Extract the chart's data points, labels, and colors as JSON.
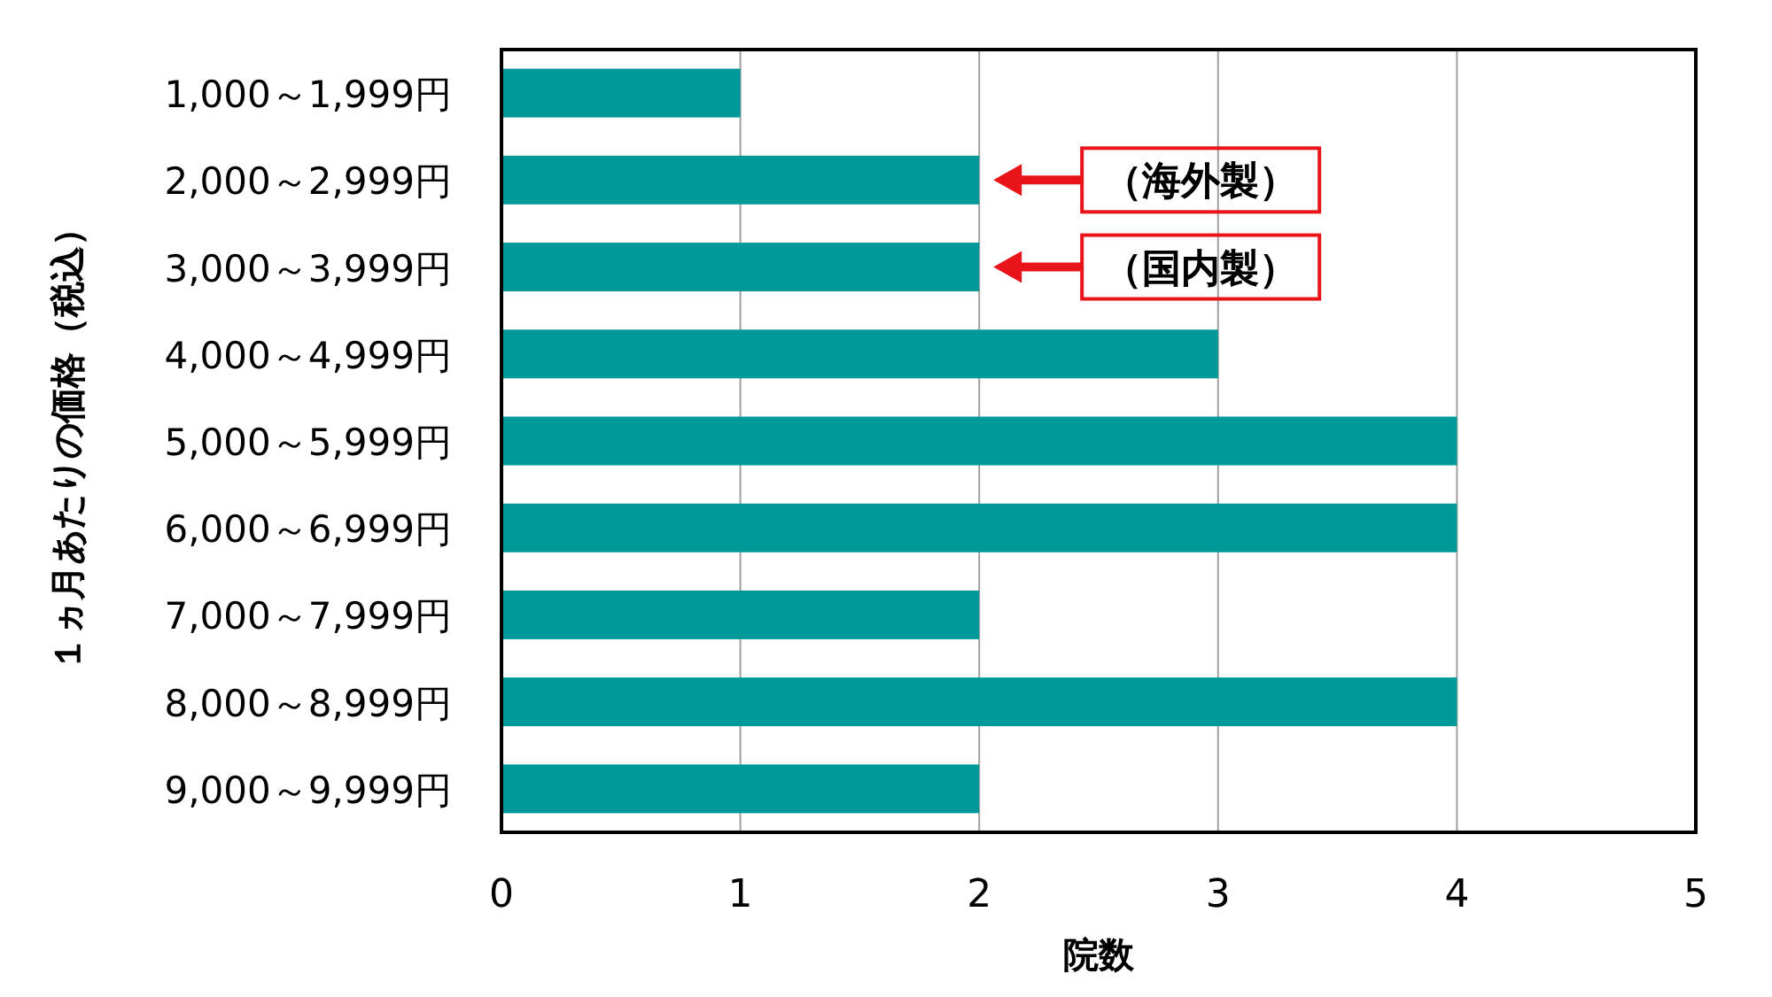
{
  "chart_data": {
    "type": "bar",
    "orientation": "horizontal",
    "categories": [
      "1,000～1,999円",
      "2,000～2,999円",
      "3,000～3,999円",
      "4,000～4,999円",
      "5,000～5,999円",
      "6,000～6,999円",
      "7,000～7,999円",
      "8,000～8,999円",
      "9,000～9,999円"
    ],
    "values": [
      1,
      2,
      2,
      3,
      4,
      4,
      2,
      4,
      2
    ],
    "color": "#00999a",
    "xlim": [
      0,
      5
    ],
    "xticks": [
      0,
      1,
      2,
      3,
      4,
      5
    ],
    "grid": "x",
    "xlabel": "院数",
    "ylabel": "１ヵ月あたりの価格（税込）",
    "annotations": [
      "（海外製）",
      "（国内製）"
    ]
  }
}
